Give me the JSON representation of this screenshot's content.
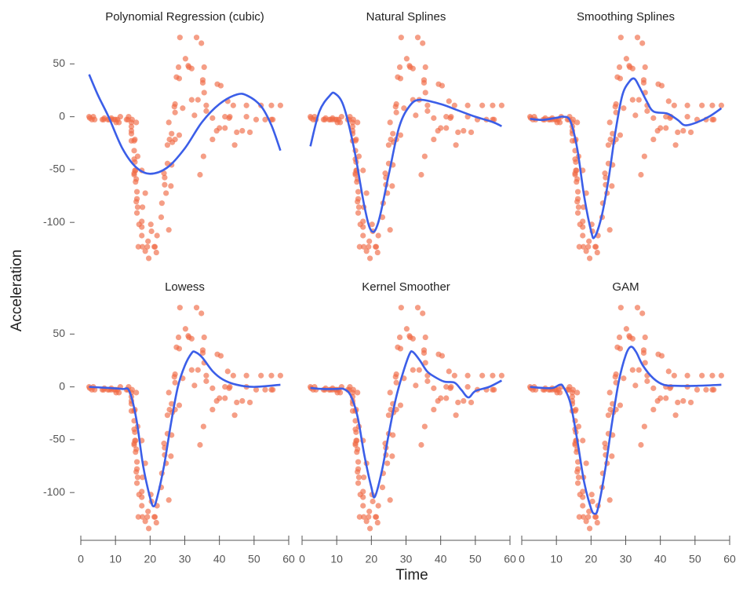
{
  "chart_data": {
    "type": "scatter",
    "xlabel": "Time",
    "ylabel": "Acceleration",
    "xlim": [
      0,
      60
    ],
    "ylim": [
      -140,
      80
    ],
    "xticks": [
      0,
      10,
      20,
      30,
      40,
      50,
      60
    ],
    "yticks": [
      -100,
      -50,
      0,
      50
    ],
    "points": {
      "color": "#ef6a45",
      "x": [
        2.4,
        2.6,
        3.2,
        3.6,
        4.0,
        6.2,
        6.6,
        6.8,
        7.8,
        8.2,
        8.8,
        8.8,
        9.6,
        10.0,
        10.2,
        10.6,
        11.0,
        11.4,
        13.2,
        13.6,
        13.8,
        14.6,
        14.6,
        14.6,
        14.6,
        14.6,
        14.8,
        15.4,
        15.4,
        15.4,
        15.4,
        15.4,
        15.6,
        15.6,
        15.6,
        15.8,
        15.8,
        16.0,
        16.0,
        16.0,
        16.2,
        16.2,
        16.2,
        16.4,
        16.4,
        16.6,
        16.8,
        17.6,
        17.6,
        17.6,
        17.6,
        17.8,
        17.8,
        18.6,
        18.6,
        19.2,
        19.4,
        19.6,
        20.2,
        20.4,
        21.2,
        21.4,
        21.8,
        22.0,
        23.2,
        23.4,
        24.0,
        24.2,
        24.2,
        24.6,
        25.0,
        25.0,
        25.4,
        25.4,
        25.6,
        26.0,
        26.2,
        26.2,
        26.4,
        27.0,
        27.2,
        27.2,
        27.2,
        27.6,
        28.2,
        28.4,
        28.4,
        28.6,
        29.4,
        30.2,
        31.0,
        31.2,
        32.0,
        32.0,
        32.8,
        33.4,
        33.8,
        34.4,
        34.8,
        35.2,
        35.2,
        35.4,
        35.6,
        35.6,
        36.2,
        36.2,
        38.0,
        38.0,
        39.2,
        39.4,
        40.0,
        40.4,
        41.6,
        41.6,
        42.4,
        42.8,
        43.0,
        44.0,
        44.4,
        45.0,
        46.6,
        47.8,
        47.8,
        48.8,
        50.6,
        52.0,
        53.2,
        55.0,
        55.0,
        55.4,
        57.6
      ],
      "values": [
        0,
        -1.3,
        -2.7,
        0,
        -2.7,
        -2.7,
        -2.7,
        -1.3,
        -2.7,
        -2.7,
        -1.3,
        -2.7,
        -2.7,
        -2.7,
        -5.4,
        -2.7,
        -5.4,
        0,
        -2.7,
        -2.7,
        0,
        -13.3,
        -5.4,
        -9.3,
        -16,
        -22.8,
        -2.7,
        -22.8,
        -32.1,
        -53.5,
        -54.9,
        -40.2,
        -21.5,
        -50.8,
        -42.9,
        -50.8,
        -61.7,
        -5.4,
        -80.4,
        -59,
        -71,
        -91.1,
        -77.7,
        -37.5,
        -85.6,
        -123.1,
        -101.9,
        -99.1,
        -104.4,
        -112.5,
        -50.8,
        -123.1,
        -85.6,
        -72.3,
        -127.2,
        -123.1,
        -117.9,
        -134,
        -101.9,
        -108.4,
        -123.1,
        -123.1,
        -128.5,
        -112.5,
        -95.1,
        -81.8,
        -53.5,
        -64.4,
        -57.6,
        -72.3,
        -44.3,
        -26.8,
        -5.4,
        -107.1,
        -21.5,
        -65.6,
        -16,
        -45.6,
        -24.2,
        9.5,
        4,
        12,
        -21.5,
        37.5,
        46.9,
        -17.4,
        36.2,
        75,
        8.1,
        54.9,
        48.2,
        46.9,
        16,
        45.6,
        1.3,
        75,
        16,
        -54.9,
        69.6,
        34.8,
        32.1,
        -37.5,
        22.8,
        46.9,
        10.7,
        5.4,
        -1.3,
        -21.5,
        -13.3,
        30.8,
        -10.7,
        29.4,
        0,
        -10.7,
        14.7,
        -1.3,
        0,
        10.7,
        -26.8,
        -14.7,
        -13.3,
        0,
        10.7,
        -14.7,
        -2.7,
        10.7,
        -2.7,
        -2.7,
        10.7,
        -2.7,
        10.7
      ]
    },
    "panels": [
      {
        "title": "Polynomial Regression (cubic)",
        "line": {
          "color": "#3b5ee8",
          "x": [
            2.4,
            5,
            8,
            12,
            16,
            20,
            25,
            30,
            35,
            40,
            45,
            48,
            52,
            55,
            57.6
          ],
          "values": [
            40,
            20,
            0,
            -30,
            -48,
            -54,
            -48,
            -30,
            -5,
            12,
            21,
            20,
            10,
            -8,
            -32
          ]
        }
      },
      {
        "title": "Natural Splines",
        "line": {
          "color": "#3b5ee8",
          "x": [
            2.4,
            5,
            8,
            9.5,
            12,
            15,
            18,
            20,
            22,
            25,
            28,
            31,
            34,
            40,
            45,
            50,
            55,
            57.6
          ],
          "values": [
            -28,
            5,
            20,
            22,
            10,
            -30,
            -85,
            -108,
            -100,
            -55,
            -10,
            10,
            16,
            12,
            6,
            0,
            -5,
            -9
          ]
        }
      },
      {
        "title": "Smoothing Splines",
        "line": {
          "color": "#3b5ee8",
          "x": [
            2.4,
            6,
            10,
            12,
            14,
            16,
            18,
            20,
            21,
            23,
            25,
            27,
            29,
            31,
            32.5,
            34,
            36,
            38,
            42,
            45,
            47,
            50,
            54,
            57.6
          ],
          "values": [
            -2,
            -3,
            -1,
            0,
            -4,
            -30,
            -75,
            -108,
            -114,
            -95,
            -60,
            -15,
            20,
            33,
            36,
            28,
            15,
            5,
            3,
            -3,
            -8,
            -6,
            0,
            8
          ]
        }
      },
      {
        "title": "Lowess",
        "line": {
          "color": "#3b5ee8",
          "x": [
            2.4,
            8,
            12,
            14,
            16,
            18,
            20,
            21,
            22,
            24,
            26,
            28,
            30,
            32,
            33,
            35,
            38,
            41,
            45,
            50,
            57.6
          ],
          "values": [
            0,
            -1,
            -2,
            -4,
            -30,
            -75,
            -105,
            -113,
            -105,
            -75,
            -35,
            0,
            20,
            32,
            33,
            28,
            15,
            7,
            2,
            0,
            2
          ]
        }
      },
      {
        "title": "Kernel Smoother",
        "line": {
          "color": "#3b5ee8",
          "x": [
            2.4,
            6,
            10,
            12,
            14,
            16,
            18,
            20,
            21,
            23,
            25,
            27,
            29,
            31,
            32,
            34,
            36,
            38,
            41,
            44,
            46,
            48,
            50,
            54,
            57.6
          ],
          "values": [
            -1,
            -2,
            -2,
            -2,
            -8,
            -28,
            -65,
            -95,
            -104,
            -80,
            -45,
            -12,
            12,
            31,
            33,
            25,
            15,
            10,
            5,
            4,
            -3,
            -10,
            -4,
            0,
            6
          ]
        }
      },
      {
        "title": "GAM",
        "line": {
          "color": "#3b5ee8",
          "x": [
            2.4,
            6,
            9,
            11,
            12,
            14,
            16,
            18,
            20,
            21,
            22,
            24,
            26,
            28,
            30,
            31.5,
            33,
            35,
            38,
            41,
            45,
            50,
            57.6
          ],
          "values": [
            0,
            -1,
            -1,
            2,
            0,
            -15,
            -50,
            -90,
            -115,
            -120,
            -115,
            -80,
            -35,
            5,
            30,
            38,
            33,
            20,
            8,
            2,
            1,
            1,
            2
          ]
        }
      }
    ]
  }
}
